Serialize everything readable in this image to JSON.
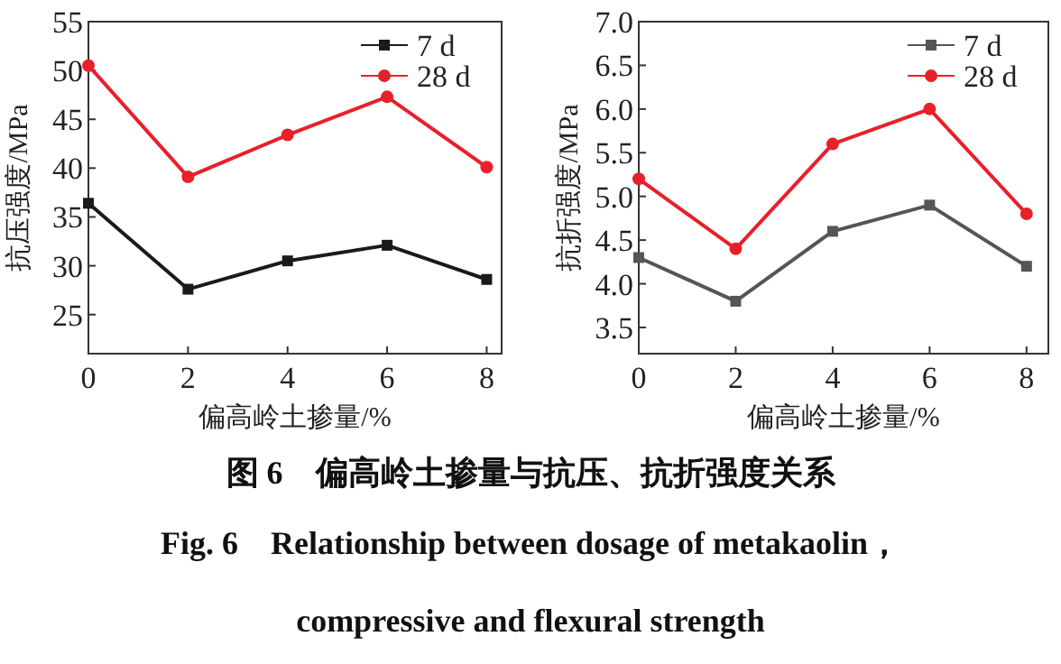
{
  "chart_data": [
    {
      "type": "line",
      "xlabel": "偏高岭土掺量/%",
      "ylabel": "抗压强度/MPa",
      "x": [
        0,
        2,
        4,
        6,
        8
      ],
      "xlim": [
        0,
        8.3
      ],
      "xticks": [
        0,
        2,
        4,
        6,
        8
      ],
      "ylim": [
        21,
        55
      ],
      "yticks": [
        25,
        30,
        35,
        40,
        45,
        50,
        55
      ],
      "legend": "top right",
      "line_style": "solid",
      "series": [
        {
          "name": "7 d",
          "color": "#1a1a1a",
          "marker": "square",
          "values": [
            36.4,
            27.6,
            30.5,
            32.1,
            28.6
          ]
        },
        {
          "name": "28 d",
          "color": "#e8202a",
          "marker": "circle",
          "values": [
            50.5,
            39.1,
            43.4,
            47.3,
            40.1
          ]
        }
      ],
      "annotations": [
        "图 6　偏高岭土掺量与抗压、抗折强度关系",
        "Fig. 6　Relationship between dosage of metakaolin，",
        "compressive and flexural strength"
      ]
    },
    {
      "type": "line",
      "xlabel": "偏高岭土掺量/%",
      "ylabel": "抗折强度/MPa",
      "x": [
        0,
        2,
        4,
        6,
        8
      ],
      "xlim": [
        0,
        8.45
      ],
      "xticks": [
        0,
        2,
        4,
        6,
        8
      ],
      "ylim": [
        3.2,
        7
      ],
      "yticks": [
        3.5,
        {
          "value": 4,
          "label": "4.0"
        },
        4.5,
        {
          "value": 5,
          "label": "5.0"
        },
        5.5,
        {
          "value": 6,
          "label": "6.0"
        },
        6.5,
        {
          "value": 7,
          "label": "7.0"
        }
      ],
      "legend": "top right",
      "line_style": "solid",
      "series": [
        {
          "name": "7 d",
          "color": "#555555",
          "marker": "square",
          "values": [
            4.3,
            3.8,
            4.6,
            4.9,
            4.2
          ]
        },
        {
          "name": "28 d",
          "color": "#e8202a",
          "marker": "circle",
          "values": [
            5.2,
            4.4,
            5.6,
            6.0,
            4.8
          ]
        }
      ]
    }
  ]
}
